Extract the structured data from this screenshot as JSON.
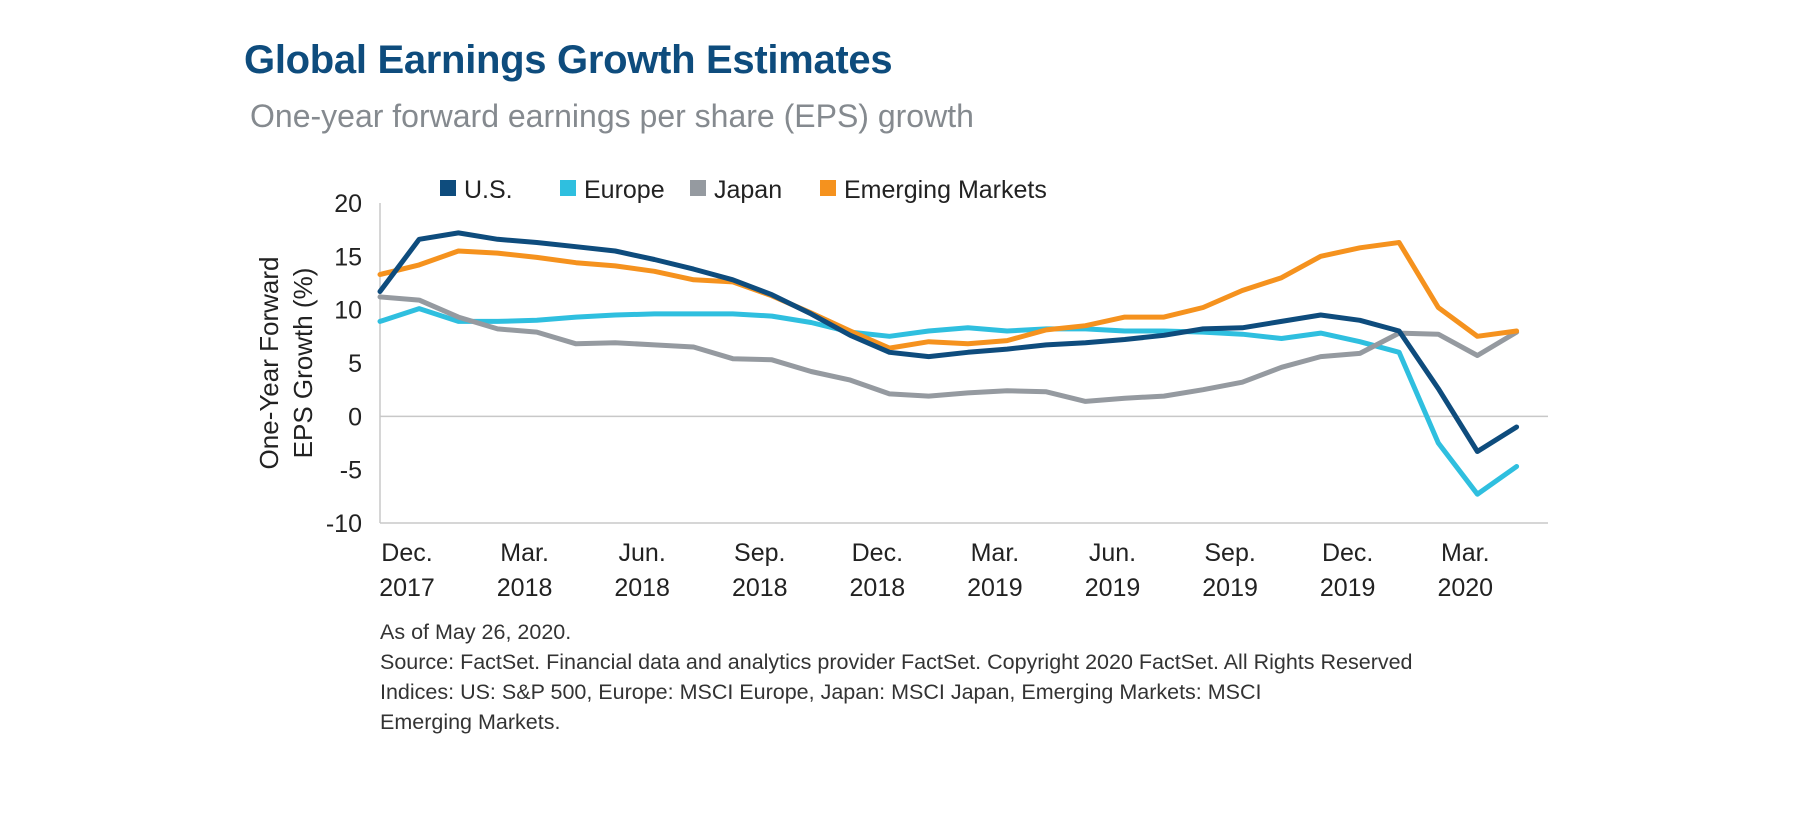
{
  "chart_data": {
    "type": "line",
    "title": "Global Earnings Growth Estimates",
    "subtitle": "One-year forward earnings per share (EPS) growth",
    "ylabel_lines": [
      "One-Year Forward",
      "EPS Growth (%)"
    ],
    "ylim": [
      -10,
      20
    ],
    "yticks": [
      20,
      15,
      10,
      5,
      0,
      -5,
      -10
    ],
    "x_ticks": [
      {
        "month": "Dec.",
        "year": "2017"
      },
      {
        "month": "Mar.",
        "year": "2018"
      },
      {
        "month": "Jun.",
        "year": "2018"
      },
      {
        "month": "Sep.",
        "year": "2018"
      },
      {
        "month": "Dec.",
        "year": "2018"
      },
      {
        "month": "Mar.",
        "year": "2019"
      },
      {
        "month": "Jun.",
        "year": "2019"
      },
      {
        "month": "Sep.",
        "year": "2019"
      },
      {
        "month": "Dec.",
        "year": "2019"
      },
      {
        "month": "Mar.",
        "year": "2020"
      }
    ],
    "x": [
      "Dec 2017",
      "Jan 2018",
      "Feb 2018",
      "Mar 2018",
      "Apr 2018",
      "May 2018",
      "Jun 2018",
      "Jul 2018",
      "Aug 2018",
      "Sep 2018",
      "Oct 2018",
      "Nov 2018",
      "Dec 2018",
      "Jan 2019",
      "Feb 2019",
      "Mar 2019",
      "Apr 2019",
      "May 2019",
      "Jun 2019",
      "Jul 2019",
      "Aug 2019",
      "Sep 2019",
      "Oct 2019",
      "Nov 2019",
      "Dec 2019",
      "Jan 2020",
      "Feb 2020",
      "Mar 2020",
      "Apr 2020",
      "May 2020"
    ],
    "zero_line": true,
    "legend_position": "top",
    "series": [
      {
        "name": "U.S.",
        "color": "#0e4c7d",
        "values": [
          11.7,
          16.6,
          17.2,
          16.6,
          16.3,
          15.9,
          15.5,
          14.7,
          13.8,
          12.8,
          11.4,
          9.6,
          7.6,
          6.0,
          5.6,
          6.0,
          6.3,
          6.7,
          6.9,
          7.2,
          7.6,
          8.2,
          8.3,
          8.9,
          9.5,
          9.0,
          8.0,
          2.6,
          -3.3,
          -1.0
        ]
      },
      {
        "name": "Europe",
        "color": "#2fbfdf",
        "values": [
          8.9,
          10.1,
          8.9,
          8.9,
          9.0,
          9.3,
          9.5,
          9.6,
          9.6,
          9.6,
          9.4,
          8.8,
          7.9,
          7.5,
          8.0,
          8.3,
          8.0,
          8.2,
          8.2,
          8.0,
          8.0,
          7.9,
          7.7,
          7.3,
          7.8,
          7.0,
          6.0,
          -2.5,
          -7.3,
          -4.7
        ]
      },
      {
        "name": "Japan",
        "color": "#959aa0",
        "values": [
          11.2,
          10.9,
          9.3,
          8.2,
          7.9,
          6.8,
          6.9,
          6.7,
          6.5,
          5.4,
          5.3,
          4.2,
          3.4,
          2.1,
          1.9,
          2.2,
          2.4,
          2.3,
          1.4,
          1.7,
          1.9,
          2.5,
          3.2,
          4.6,
          5.6,
          5.9,
          7.8,
          7.7,
          5.7,
          7.9
        ]
      },
      {
        "name": "Emerging Markets",
        "color": "#f5921e",
        "values": [
          13.3,
          14.2,
          15.5,
          15.3,
          14.9,
          14.4,
          14.1,
          13.6,
          12.8,
          12.6,
          11.3,
          9.7,
          8.0,
          6.4,
          7.0,
          6.8,
          7.1,
          8.1,
          8.5,
          9.3,
          9.3,
          10.2,
          11.8,
          13.0,
          15.0,
          15.8,
          16.3,
          10.2,
          7.5,
          8.0
        ]
      }
    ]
  },
  "footnotes": {
    "asof": "As of May 26, 2020.",
    "source": "Source: FactSet. Financial data and analytics provider FactSet. Copyright 2020 FactSet. All Rights Reserved",
    "indices_line1": "Indices: US: S&P 500, Europe: MSCI Europe, Japan: MSCI Japan, Emerging Markets: MSCI",
    "indices_line2": "Emerging Markets."
  },
  "colors": {
    "title": "#0e4c7d",
    "subtitle": "#858a8f",
    "axis": "#c8c8c8"
  }
}
